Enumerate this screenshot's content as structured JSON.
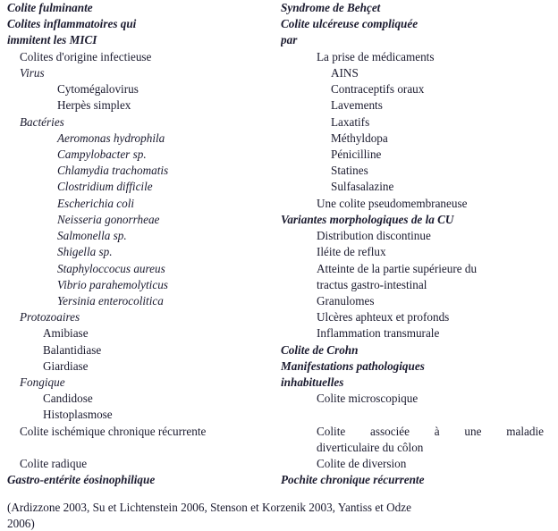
{
  "colors": {
    "text": "#1a1a2e",
    "background": "#ffffff"
  },
  "typography": {
    "family": "serif",
    "size_pt": 10,
    "line_height": 1.38
  },
  "left": {
    "h0": "Colite fulminante",
    "h1a": "Colites inflammatoires qui",
    "h1b": "immitent les MICI",
    "s1": "Colites d'origine infectieuse",
    "s2": "Virus",
    "s2_items": [
      "Cytomégalovirus",
      "Herpès simplex"
    ],
    "s3": "Bactéries",
    "s3_items": [
      "Aeromonas hydrophila",
      "Campylobacter sp.",
      "Chlamydia trachomatis",
      "Clostridium difficile",
      "Escherichia coli",
      "Neisseria gonorrheae",
      "Salmonella sp.",
      "Shigella sp.",
      "Staphyloccocus aureus",
      "Vibrio parahemolyticus",
      "Yersinia enterocolitica"
    ],
    "s4": "Protozoaires",
    "s4_items": [
      "Amibiase",
      "Balantidiase",
      "Giardiase"
    ],
    "s5": "Fongique",
    "s5_items": [
      "Candidose",
      "Histoplasmose"
    ],
    "l1": "Colite ischémique chronique récurrente",
    "l2": "Colite radique",
    "h2": "Gastro-entérite éosinophilique"
  },
  "right": {
    "h0": "Syndrome de Behçet",
    "h1a": "Colite ulcéreuse compliquée",
    "h1b": "par",
    "s1": "La prise de médicaments",
    "s1_items": [
      "AINS",
      "Contraceptifs oraux",
      "Lavements",
      "Laxatifs",
      "Méthyldopa",
      "Pénicilline",
      "Statines",
      "Sulfasalazine"
    ],
    "s2": "Une colite pseudomembraneuse",
    "h2": "Variantes morphologiques de la CU",
    "h2_items_a": [
      "Distribution discontinue",
      "Iléite de reflux"
    ],
    "h2_wrap_a": "Atteinte de la partie supérieure du",
    "h2_wrap_b": "tractus gastro-intestinal",
    "h2_items_b": [
      "Granulomes",
      "Ulcères aphteux et profonds",
      "Inflammation transmurale"
    ],
    "h3": "Colite de Crohn",
    "h4a": "Manifestations pathologiques",
    "h4b": "inhabituelles",
    "h4_item1": "Colite microscopique",
    "h4_just": [
      "Colite",
      "associée",
      "à",
      "une",
      "maladie"
    ],
    "h4_just_b": "diverticulaire du côlon",
    "h4_item2": "Colite de diversion",
    "h5": "Pochite chronique récurrente"
  },
  "citation_a": "(Ardizzone 2003, Su et Lichtenstein 2006, Stenson et Korzenik 2003, Yantiss et Odze",
  "citation_b": "2006)"
}
